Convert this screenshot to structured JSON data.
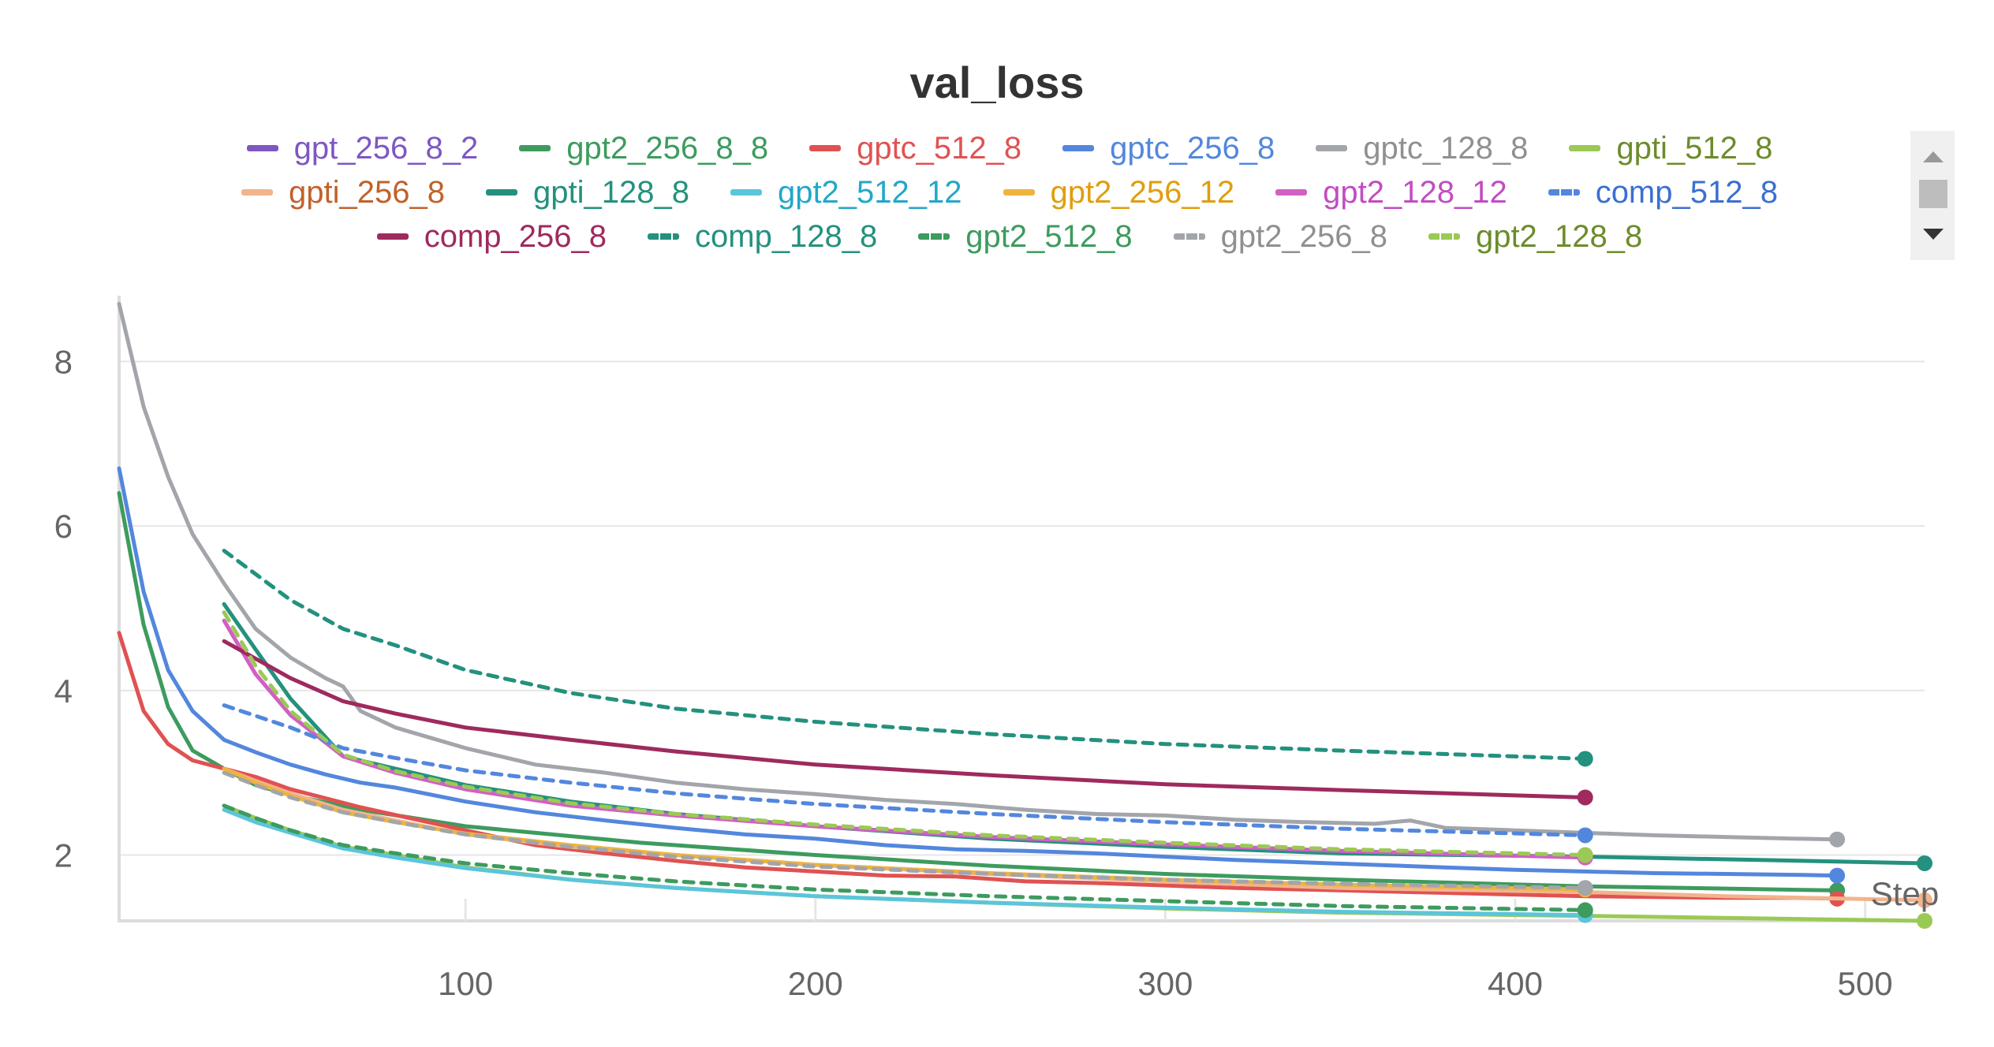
{
  "chart_data": {
    "type": "line",
    "title": "val_loss",
    "xlabel": "Step",
    "ylabel": "",
    "xlim": [
      1,
      517
    ],
    "ylim": [
      1.2,
      8.8
    ],
    "xticks": [
      100,
      200,
      300,
      400,
      500
    ],
    "yticks": [
      2,
      4,
      6,
      8
    ],
    "grid": "horizontal",
    "legend_position": "top",
    "series": [
      {
        "name": "gpt_256_8_2",
        "color": "#7e57c2",
        "dash": false,
        "x": [],
        "y": []
      },
      {
        "name": "gpt2_256_8_8",
        "color": "#3d9b5e",
        "dash": false,
        "x": [
          1,
          8,
          15,
          22,
          31,
          40,
          50,
          70,
          100,
          150,
          200,
          250,
          300,
          350,
          420,
          492
        ],
        "y": [
          6.4,
          4.8,
          3.8,
          3.27,
          3.05,
          2.85,
          2.73,
          2.55,
          2.35,
          2.15,
          2.0,
          1.87,
          1.77,
          1.7,
          1.62,
          1.57
        ]
      },
      {
        "name": "gptc_512_8",
        "color": "#e05252",
        "dash": false,
        "x": [
          1,
          8,
          15,
          22,
          31,
          40,
          50,
          70,
          100,
          120,
          140,
          160,
          180,
          200,
          220,
          240,
          260,
          280,
          300,
          320,
          340,
          360,
          380,
          400,
          420,
          440,
          460,
          480,
          492
        ],
        "y": [
          4.7,
          3.75,
          3.35,
          3.15,
          3.05,
          2.95,
          2.8,
          2.58,
          2.3,
          2.12,
          2.02,
          1.93,
          1.85,
          1.8,
          1.75,
          1.74,
          1.68,
          1.66,
          1.63,
          1.6,
          1.58,
          1.56,
          1.54,
          1.52,
          1.5,
          1.49,
          1.48,
          1.48,
          1.47
        ]
      },
      {
        "name": "gptc_256_8",
        "color": "#5387dd",
        "dash": false,
        "x": [
          1,
          8,
          15,
          22,
          31,
          40,
          50,
          60,
          70,
          80,
          100,
          120,
          140,
          160,
          180,
          200,
          220,
          240,
          260,
          280,
          300,
          320,
          340,
          360,
          380,
          400,
          420,
          440,
          460,
          480,
          492
        ],
        "y": [
          6.7,
          5.2,
          4.25,
          3.75,
          3.4,
          3.25,
          3.1,
          2.98,
          2.88,
          2.82,
          2.65,
          2.52,
          2.42,
          2.33,
          2.25,
          2.2,
          2.12,
          2.07,
          2.05,
          2.02,
          1.98,
          1.94,
          1.91,
          1.88,
          1.85,
          1.82,
          1.8,
          1.78,
          1.77,
          1.76,
          1.75
        ]
      },
      {
        "name": "gptc_128_8",
        "color": "#a2a5a9",
        "dash": false,
        "x": [
          1,
          8,
          15,
          22,
          31,
          40,
          50,
          60,
          65,
          70,
          80,
          100,
          120,
          140,
          160,
          180,
          200,
          220,
          240,
          260,
          280,
          300,
          320,
          340,
          360,
          370,
          380,
          400,
          420,
          440,
          460,
          480,
          492
        ],
        "y": [
          8.7,
          7.45,
          6.6,
          5.9,
          5.3,
          4.75,
          4.4,
          4.15,
          4.05,
          3.75,
          3.55,
          3.3,
          3.1,
          3.0,
          2.88,
          2.8,
          2.74,
          2.67,
          2.62,
          2.55,
          2.5,
          2.48,
          2.43,
          2.4,
          2.38,
          2.42,
          2.33,
          2.3,
          2.27,
          2.24,
          2.22,
          2.2,
          2.19
        ]
      },
      {
        "name": "gpti_512_8",
        "color": "#9bc955",
        "dash": false,
        "x": [
          31,
          40,
          50,
          65,
          80,
          100,
          130,
          160,
          200,
          250,
          300,
          350,
          420,
          517
        ],
        "y": [
          2.6,
          2.45,
          2.3,
          2.1,
          2.0,
          1.85,
          1.7,
          1.6,
          1.5,
          1.42,
          1.35,
          1.3,
          1.26,
          1.2
        ]
      },
      {
        "name": "gpti_256_8",
        "color": "#f2b48c",
        "dash": false,
        "x": [
          31,
          40,
          50,
          65,
          80,
          100,
          130,
          160,
          200,
          250,
          300,
          350,
          420,
          460,
          517
        ],
        "y": [
          3.05,
          2.9,
          2.75,
          2.55,
          2.42,
          2.25,
          2.1,
          2.0,
          1.88,
          1.77,
          1.68,
          1.6,
          1.55,
          1.5,
          1.45
        ]
      },
      {
        "name": "gpti_128_8",
        "color": "#23917e",
        "dash": false,
        "x": [
          31,
          40,
          50,
          65,
          80,
          100,
          130,
          160,
          200,
          250,
          300,
          350,
          420,
          470,
          517
        ],
        "y": [
          5.05,
          4.5,
          3.9,
          3.2,
          3.05,
          2.85,
          2.65,
          2.5,
          2.35,
          2.2,
          2.1,
          2.02,
          1.98,
          1.94,
          1.9
        ]
      },
      {
        "name": "gpt2_512_12",
        "color": "#5bc5db",
        "dash": false,
        "x": [
          31,
          40,
          50,
          65,
          80,
          100,
          130,
          160,
          200,
          250,
          300,
          350,
          420
        ],
        "y": [
          2.55,
          2.4,
          2.27,
          2.08,
          1.97,
          1.84,
          1.7,
          1.6,
          1.5,
          1.42,
          1.36,
          1.31,
          1.27
        ]
      },
      {
        "name": "gpt2_256_12",
        "color": "#efb33f",
        "dash": false,
        "x": [
          31,
          40,
          50,
          65,
          80,
          100,
          130,
          160,
          200,
          250,
          300,
          350,
          420
        ],
        "y": [
          3.05,
          2.88,
          2.72,
          2.52,
          2.4,
          2.26,
          2.12,
          2.0,
          1.88,
          1.78,
          1.7,
          1.64,
          1.58
        ]
      },
      {
        "name": "gpt2_128_12",
        "color": "#d160c4",
        "dash": false,
        "x": [
          31,
          40,
          50,
          65,
          80,
          100,
          130,
          160,
          200,
          250,
          300,
          350,
          420
        ],
        "y": [
          4.85,
          4.2,
          3.7,
          3.2,
          3.0,
          2.8,
          2.6,
          2.48,
          2.35,
          2.22,
          2.13,
          2.05,
          1.97
        ]
      },
      {
        "name": "comp_512_8",
        "color": "#5387dd",
        "dash": true,
        "x": [
          31,
          50,
          65,
          80,
          100,
          130,
          160,
          200,
          250,
          300,
          350,
          420
        ],
        "y": [
          3.82,
          3.55,
          3.3,
          3.18,
          3.03,
          2.88,
          2.75,
          2.62,
          2.5,
          2.4,
          2.32,
          2.24
        ]
      },
      {
        "name": "comp_256_8",
        "color": "#9e2a5e",
        "dash": false,
        "x": [
          31,
          50,
          65,
          80,
          100,
          130,
          160,
          200,
          250,
          300,
          350,
          420
        ],
        "y": [
          4.6,
          4.15,
          3.87,
          3.72,
          3.55,
          3.4,
          3.26,
          3.1,
          2.97,
          2.86,
          2.79,
          2.7
        ]
      },
      {
        "name": "comp_128_8",
        "color": "#23917e",
        "dash": true,
        "x": [
          31,
          50,
          65,
          80,
          100,
          130,
          160,
          200,
          250,
          300,
          350,
          420
        ],
        "y": [
          5.7,
          5.1,
          4.75,
          4.55,
          4.25,
          3.97,
          3.78,
          3.62,
          3.47,
          3.35,
          3.27,
          3.17
        ]
      },
      {
        "name": "gpt2_512_8",
        "color": "#3d9b5e",
        "dash": true,
        "x": [
          31,
          40,
          50,
          65,
          80,
          100,
          130,
          160,
          200,
          250,
          300,
          350,
          420
        ],
        "y": [
          2.6,
          2.45,
          2.3,
          2.12,
          2.02,
          1.9,
          1.78,
          1.68,
          1.58,
          1.5,
          1.44,
          1.38,
          1.33
        ]
      },
      {
        "name": "gpt2_256_8",
        "color": "#a2a5a9",
        "dash": true,
        "x": [
          31,
          40,
          50,
          65,
          80,
          100,
          130,
          160,
          200,
          250,
          300,
          350,
          420
        ],
        "y": [
          3.0,
          2.85,
          2.7,
          2.52,
          2.4,
          2.25,
          2.1,
          1.98,
          1.86,
          1.77,
          1.7,
          1.65,
          1.6
        ]
      },
      {
        "name": "gpt2_128_8",
        "color": "#9bc955",
        "dash": true,
        "x": [
          31,
          40,
          50,
          65,
          80,
          100,
          130,
          160,
          200,
          250,
          300,
          350,
          420
        ],
        "y": [
          4.95,
          4.3,
          3.75,
          3.22,
          3.02,
          2.83,
          2.63,
          2.5,
          2.37,
          2.24,
          2.15,
          2.07,
          2.0
        ]
      }
    ],
    "legend_text_colors": [
      "#7e57c2",
      "#3d9b5e",
      "#e05252",
      "#5387dd",
      "#909090",
      "#6c8c2a",
      "#c0622a",
      "#23917e",
      "#22a7c9",
      "#e09e0e",
      "#c24cc2",
      "#3b6fd1",
      "#9e2a5e",
      "#23917e",
      "#3d9b5e",
      "#909090",
      "#6c8c2a"
    ]
  }
}
